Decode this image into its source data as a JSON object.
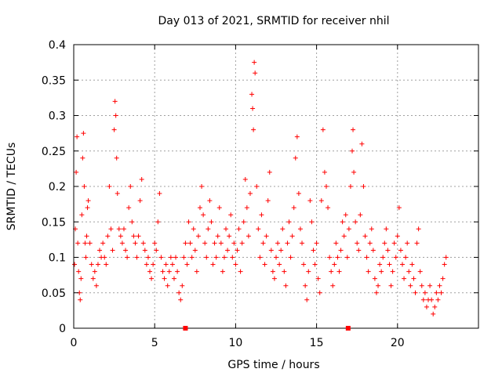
{
  "chart_data": {
    "type": "scatter",
    "title": "Day 013 of 2021, SRMTID for receiver nhil",
    "xlabel": "GPS time / hours",
    "ylabel": "SRMTID / TECUs",
    "xlim": [
      0,
      25
    ],
    "ylim": [
      0,
      0.4
    ],
    "grid": true,
    "x_ticks": [
      0,
      5,
      10,
      15,
      20
    ],
    "x_tick_labels": [
      "0",
      "5",
      "10",
      "15",
      "20"
    ],
    "y_ticks": [
      0,
      0.05,
      0.1,
      0.15,
      0.2,
      0.25,
      0.3,
      0.35,
      0.4
    ],
    "y_tick_labels": [
      "0",
      "0.05",
      "0.1",
      "0.15",
      "0.2",
      "0.25",
      "0.3",
      "0.35",
      "0.4"
    ],
    "marker": "plus",
    "color": "#ff0000",
    "series": [
      {
        "name": "SRMTID",
        "points": [
          [
            0.05,
            0.09
          ],
          [
            0.1,
            0.14
          ],
          [
            0.15,
            0.22
          ],
          [
            0.2,
            0.27
          ],
          [
            0.25,
            0.12
          ],
          [
            0.3,
            0.08
          ],
          [
            0.35,
            0.05
          ],
          [
            0.4,
            0.04
          ],
          [
            0.45,
            0.07
          ],
          [
            0.5,
            0.16
          ],
          [
            0.55,
            0.24
          ],
          [
            0.6,
            0.275
          ],
          [
            0.65,
            0.2
          ],
          [
            0.7,
            0.12
          ],
          [
            0.75,
            0.1
          ],
          [
            0.8,
            0.13
          ],
          [
            0.85,
            0.17
          ],
          [
            0.9,
            0.18
          ],
          [
            1.0,
            0.12
          ],
          [
            1.1,
            0.09
          ],
          [
            1.2,
            0.07
          ],
          [
            1.3,
            0.08
          ],
          [
            1.4,
            0.06
          ],
          [
            1.5,
            0.09
          ],
          [
            1.6,
            0.11
          ],
          [
            1.7,
            0.1
          ],
          [
            1.8,
            0.12
          ],
          [
            1.9,
            0.1
          ],
          [
            2.0,
            0.09
          ],
          [
            2.1,
            0.13
          ],
          [
            2.2,
            0.2
          ],
          [
            2.3,
            0.14
          ],
          [
            2.4,
            0.11
          ],
          [
            2.5,
            0.28
          ],
          [
            2.55,
            0.32
          ],
          [
            2.6,
            0.3
          ],
          [
            2.65,
            0.24
          ],
          [
            2.7,
            0.19
          ],
          [
            2.8,
            0.14
          ],
          [
            2.9,
            0.13
          ],
          [
            3.0,
            0.12
          ],
          [
            3.1,
            0.14
          ],
          [
            3.2,
            0.11
          ],
          [
            3.3,
            0.1
          ],
          [
            3.4,
            0.17
          ],
          [
            3.5,
            0.2
          ],
          [
            3.6,
            0.15
          ],
          [
            3.7,
            0.13
          ],
          [
            3.8,
            0.12
          ],
          [
            3.9,
            0.1
          ],
          [
            4.0,
            0.13
          ],
          [
            4.1,
            0.18
          ],
          [
            4.2,
            0.21
          ],
          [
            4.3,
            0.12
          ],
          [
            4.4,
            0.11
          ],
          [
            4.5,
            0.09
          ],
          [
            4.6,
            0.1
          ],
          [
            4.7,
            0.08
          ],
          [
            4.8,
            0.07
          ],
          [
            4.9,
            0.09
          ],
          [
            5.0,
            0.12
          ],
          [
            5.1,
            0.11
          ],
          [
            5.2,
            0.15
          ],
          [
            5.3,
            0.19
          ],
          [
            5.4,
            0.1
          ],
          [
            5.5,
            0.08
          ],
          [
            5.6,
            0.07
          ],
          [
            5.7,
            0.09
          ],
          [
            5.8,
            0.06
          ],
          [
            5.9,
            0.08
          ],
          [
            6.0,
            0.1
          ],
          [
            6.1,
            0.09
          ],
          [
            6.2,
            0.07
          ],
          [
            6.3,
            0.1
          ],
          [
            6.4,
            0.08
          ],
          [
            6.5,
            0.05
          ],
          [
            6.6,
            0.04
          ],
          [
            6.7,
            0.06
          ],
          [
            6.8,
            0.1
          ],
          [
            6.9,
            0.12
          ],
          [
            7.0,
            0.09
          ],
          [
            7.1,
            0.15
          ],
          [
            7.2,
            0.12
          ],
          [
            7.3,
            0.1
          ],
          [
            7.4,
            0.14
          ],
          [
            7.5,
            0.11
          ],
          [
            7.6,
            0.08
          ],
          [
            7.7,
            0.13
          ],
          [
            7.8,
            0.17
          ],
          [
            7.9,
            0.2
          ],
          [
            8.0,
            0.16
          ],
          [
            8.1,
            0.12
          ],
          [
            8.2,
            0.1
          ],
          [
            8.3,
            0.14
          ],
          [
            8.4,
            0.18
          ],
          [
            8.5,
            0.15
          ],
          [
            8.6,
            0.09
          ],
          [
            8.7,
            0.12
          ],
          [
            8.8,
            0.1
          ],
          [
            8.9,
            0.13
          ],
          [
            9.0,
            0.17
          ],
          [
            9.1,
            0.12
          ],
          [
            9.2,
            0.08
          ],
          [
            9.3,
            0.1
          ],
          [
            9.4,
            0.14
          ],
          [
            9.5,
            0.11
          ],
          [
            9.6,
            0.13
          ],
          [
            9.7,
            0.16
          ],
          [
            9.8,
            0.1
          ],
          [
            9.9,
            0.12
          ],
          [
            10.0,
            0.09
          ],
          [
            10.1,
            0.11
          ],
          [
            10.2,
            0.14
          ],
          [
            10.3,
            0.08
          ],
          [
            10.4,
            0.12
          ],
          [
            10.5,
            0.15
          ],
          [
            10.6,
            0.21
          ],
          [
            10.7,
            0.17
          ],
          [
            10.8,
            0.13
          ],
          [
            10.9,
            0.19
          ],
          [
            11.0,
            0.33
          ],
          [
            11.05,
            0.31
          ],
          [
            11.1,
            0.28
          ],
          [
            11.15,
            0.375
          ],
          [
            11.2,
            0.36
          ],
          [
            11.3,
            0.2
          ],
          [
            11.4,
            0.14
          ],
          [
            11.5,
            0.1
          ],
          [
            11.6,
            0.16
          ],
          [
            11.7,
            0.12
          ],
          [
            11.8,
            0.09
          ],
          [
            11.9,
            0.13
          ],
          [
            12.0,
            0.18
          ],
          [
            12.1,
            0.22
          ],
          [
            12.2,
            0.11
          ],
          [
            12.3,
            0.08
          ],
          [
            12.4,
            0.07
          ],
          [
            12.5,
            0.1
          ],
          [
            12.6,
            0.12
          ],
          [
            12.7,
            0.09
          ],
          [
            12.8,
            0.11
          ],
          [
            12.9,
            0.14
          ],
          [
            13.0,
            0.08
          ],
          [
            13.1,
            0.06
          ],
          [
            13.2,
            0.12
          ],
          [
            13.3,
            0.15
          ],
          [
            13.4,
            0.1
          ],
          [
            13.5,
            0.13
          ],
          [
            13.6,
            0.17
          ],
          [
            13.7,
            0.24
          ],
          [
            13.8,
            0.27
          ],
          [
            13.9,
            0.19
          ],
          [
            14.0,
            0.14
          ],
          [
            14.1,
            0.12
          ],
          [
            14.2,
            0.09
          ],
          [
            14.3,
            0.06
          ],
          [
            14.4,
            0.04
          ],
          [
            14.5,
            0.08
          ],
          [
            14.6,
            0.18
          ],
          [
            14.7,
            0.15
          ],
          [
            14.8,
            0.11
          ],
          [
            14.9,
            0.09
          ],
          [
            15.0,
            0.12
          ],
          [
            15.1,
            0.07
          ],
          [
            15.2,
            0.05
          ],
          [
            15.3,
            0.18
          ],
          [
            15.4,
            0.28
          ],
          [
            15.5,
            0.22
          ],
          [
            15.6,
            0.2
          ],
          [
            15.7,
            0.17
          ],
          [
            15.8,
            0.1
          ],
          [
            15.9,
            0.08
          ],
          [
            16.0,
            0.06
          ],
          [
            16.1,
            0.09
          ],
          [
            16.2,
            0.12
          ],
          [
            16.3,
            0.1
          ],
          [
            16.4,
            0.08
          ],
          [
            16.5,
            0.11
          ],
          [
            16.6,
            0.15
          ],
          [
            16.7,
            0.13
          ],
          [
            16.8,
            0.16
          ],
          [
            16.9,
            0.1
          ],
          [
            17.0,
            0.14
          ],
          [
            17.1,
            0.2
          ],
          [
            17.2,
            0.25
          ],
          [
            17.25,
            0.28
          ],
          [
            17.3,
            0.22
          ],
          [
            17.4,
            0.15
          ],
          [
            17.5,
            0.12
          ],
          [
            17.6,
            0.11
          ],
          [
            17.7,
            0.16
          ],
          [
            17.8,
            0.26
          ],
          [
            17.9,
            0.2
          ],
          [
            18.0,
            0.13
          ],
          [
            18.1,
            0.1
          ],
          [
            18.2,
            0.08
          ],
          [
            18.3,
            0.12
          ],
          [
            18.4,
            0.14
          ],
          [
            18.5,
            0.11
          ],
          [
            18.6,
            0.07
          ],
          [
            18.7,
            0.05
          ],
          [
            18.8,
            0.06
          ],
          [
            18.9,
            0.09
          ],
          [
            19.0,
            0.08
          ],
          [
            19.1,
            0.1
          ],
          [
            19.2,
            0.12
          ],
          [
            19.3,
            0.14
          ],
          [
            19.4,
            0.11
          ],
          [
            19.5,
            0.09
          ],
          [
            19.6,
            0.06
          ],
          [
            19.7,
            0.08
          ],
          [
            19.8,
            0.12
          ],
          [
            19.9,
            0.1
          ],
          [
            20.0,
            0.13
          ],
          [
            20.1,
            0.17
          ],
          [
            20.2,
            0.11
          ],
          [
            20.3,
            0.09
          ],
          [
            20.4,
            0.07
          ],
          [
            20.5,
            0.1
          ],
          [
            20.6,
            0.12
          ],
          [
            20.7,
            0.08
          ],
          [
            20.8,
            0.06
          ],
          [
            20.9,
            0.09
          ],
          [
            21.0,
            0.07
          ],
          [
            21.1,
            0.05
          ],
          [
            21.2,
            0.12
          ],
          [
            21.3,
            0.14
          ],
          [
            21.4,
            0.08
          ],
          [
            21.5,
            0.06
          ],
          [
            21.6,
            0.04
          ],
          [
            21.7,
            0.05
          ],
          [
            21.8,
            0.03
          ],
          [
            21.9,
            0.04
          ],
          [
            22.0,
            0.06
          ],
          [
            22.1,
            0.04
          ],
          [
            22.2,
            0.02
          ],
          [
            22.3,
            0.03
          ],
          [
            22.4,
            0.05
          ],
          [
            22.5,
            0.04
          ],
          [
            22.6,
            0.06
          ],
          [
            22.7,
            0.05
          ],
          [
            22.8,
            0.07
          ],
          [
            22.9,
            0.09
          ],
          [
            23.0,
            0.1
          ]
        ]
      }
    ],
    "bottom_markers_x": [
      6.9,
      16.95
    ]
  }
}
